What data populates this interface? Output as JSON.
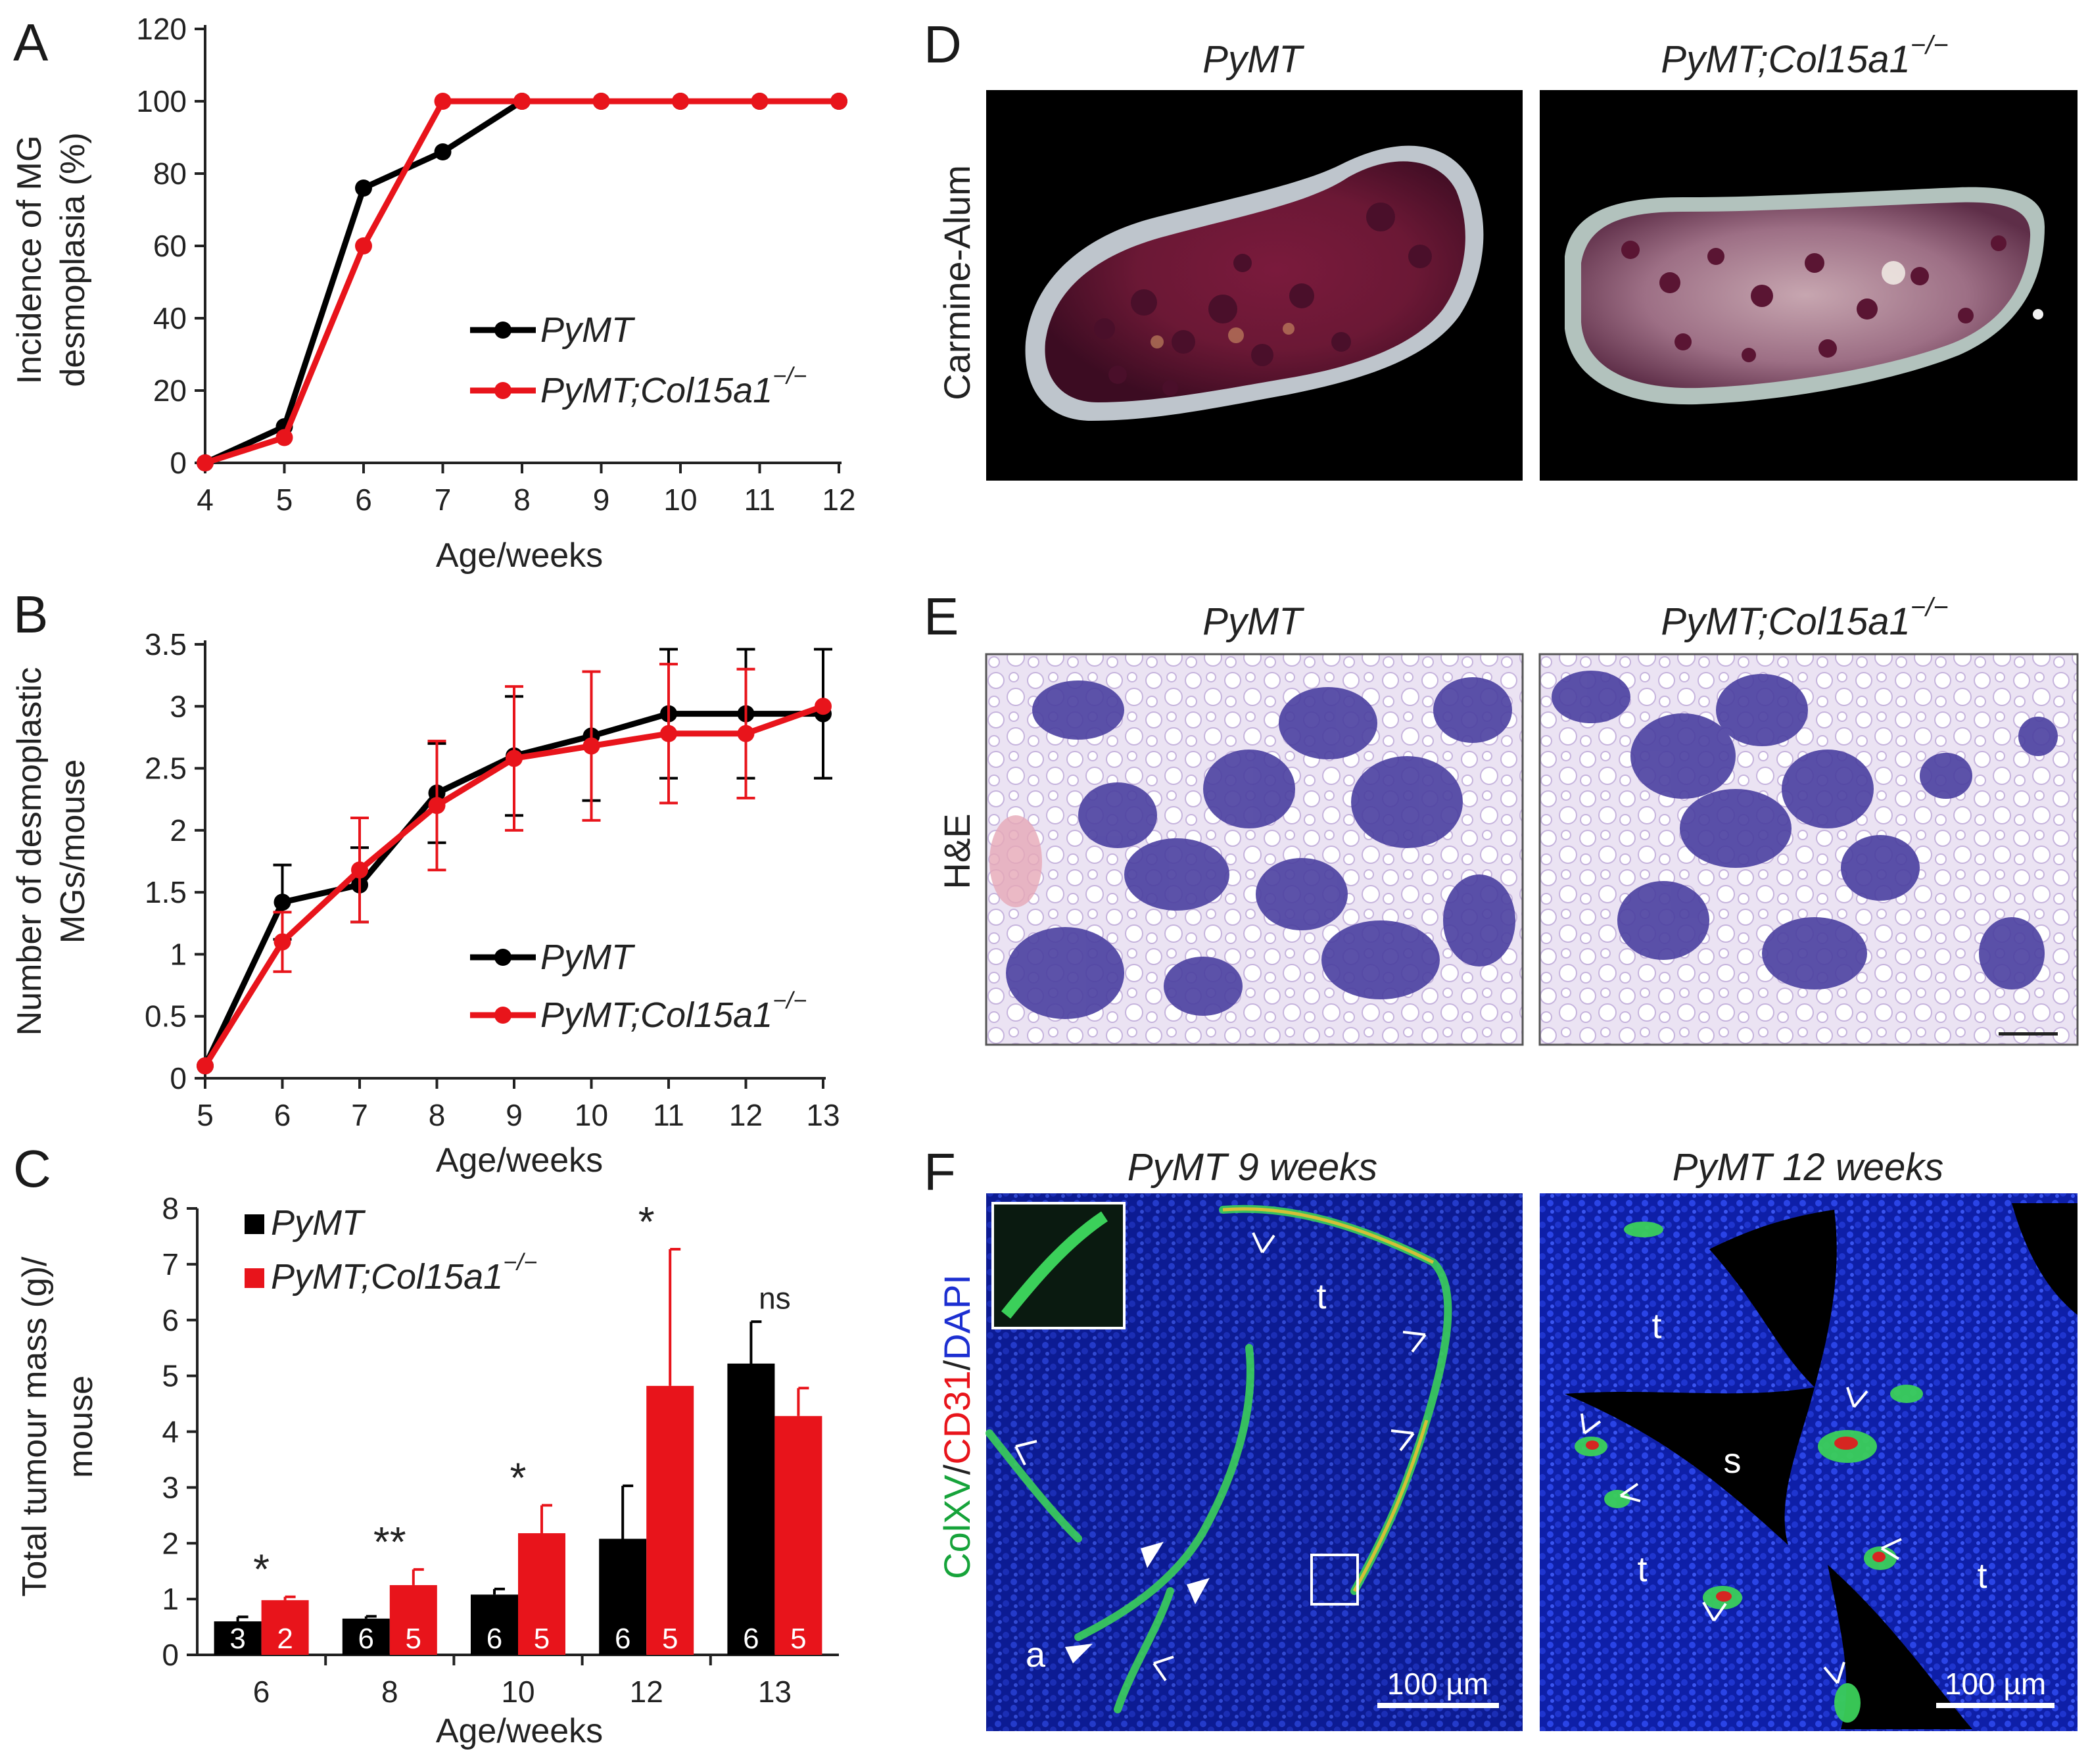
{
  "panels": {
    "A": {
      "letter": "A",
      "chart_data": {
        "type": "line",
        "x": [
          4,
          5,
          6,
          7,
          8,
          9,
          10,
          11,
          12
        ],
        "series": [
          {
            "name": "PyMT",
            "color": "#000000",
            "values": [
              0,
              10,
              76,
              86,
              100,
              100,
              100,
              100,
              100
            ]
          },
          {
            "name": "PyMT;Col15a1",
            "color": "#e8141b",
            "values": [
              0,
              7,
              60,
              100,
              100,
              100,
              100,
              100,
              100
            ]
          }
        ],
        "xlabel": "Age/weeks",
        "ylabel_lines": [
          "Incidence of MG",
          "desmoplasia (%)"
        ],
        "xlim": [
          4,
          12
        ],
        "ylim": [
          0,
          120
        ],
        "yticks": [
          0,
          20,
          40,
          60,
          80,
          100,
          120
        ],
        "legend_position": "center-right"
      }
    },
    "B": {
      "letter": "B",
      "chart_data": {
        "type": "line",
        "x": [
          5,
          6,
          7,
          8,
          9,
          10,
          11,
          12,
          13
        ],
        "series": [
          {
            "name": "PyMT",
            "color": "#000000",
            "values": [
              0.1,
              1.42,
              1.56,
              2.3,
              2.6,
              2.76,
              2.94,
              2.94,
              2.94
            ],
            "errors": [
              0,
              0.3,
              0.3,
              0.4,
              0.48,
              0.52,
              0.52,
              0.52,
              0.52
            ]
          },
          {
            "name": "PyMT;Col15a1",
            "color": "#e8141b",
            "values": [
              0.1,
              1.1,
              1.68,
              2.2,
              2.58,
              2.68,
              2.78,
              2.78,
              3.0
            ],
            "errors": [
              0,
              0.24,
              0.42,
              0.52,
              0.58,
              0.6,
              0.56,
              0.52,
              0
            ]
          }
        ],
        "xlabel": "Age/weeks",
        "ylabel_lines": [
          "Number of desmoplastic",
          "MGs/mouse"
        ],
        "xlim": [
          5,
          13
        ],
        "ylim": [
          0,
          3.5
        ],
        "yticks": [
          0,
          0.5,
          1,
          1.5,
          2,
          2.5,
          3,
          3.5
        ],
        "legend_position": "center-right"
      }
    },
    "C": {
      "letter": "C",
      "chart_data": {
        "type": "bar",
        "categories": [
          "6",
          "8",
          "10",
          "12",
          "13"
        ],
        "series": [
          {
            "name": "PyMT",
            "color": "#000000",
            "values": [
              0.6,
              0.65,
              1.08,
              2.08,
              5.22
            ],
            "errors": [
              0.08,
              0.04,
              0.1,
              0.95,
              0.75
            ],
            "n": [
              "3",
              "6",
              "6",
              "6",
              "6"
            ]
          },
          {
            "name": "PyMT;Col15a1",
            "color": "#e8141b",
            "values": [
              0.98,
              1.25,
              2.18,
              4.82,
              4.28
            ],
            "errors": [
              0.06,
              0.28,
              0.5,
              2.45,
              0.5
            ],
            "n": [
              "2",
              "5",
              "5",
              "5",
              "5"
            ]
          }
        ],
        "significance": [
          "*",
          "**",
          "*",
          "*",
          "ns"
        ],
        "xlabel": "Age/weeks",
        "ylabel_lines": [
          "Total tumour mass (g)/",
          "mouse"
        ],
        "ylim": [
          0,
          8
        ],
        "yticks": [
          0,
          1,
          2,
          3,
          4,
          5,
          6,
          7,
          8
        ],
        "legend_position": "top-left"
      }
    },
    "D": {
      "letter": "D",
      "row_label": "Carmine-Alum",
      "titles": [
        "PyMT",
        "PyMT;Col15a1"
      ]
    },
    "E": {
      "letter": "E",
      "row_label": "H&E",
      "titles": [
        "PyMT",
        "PyMT;Col15a1"
      ]
    },
    "F": {
      "letter": "F",
      "row_label_parts": [
        {
          "text": "ColXV",
          "color": "#16a33a"
        },
        {
          "text": "/",
          "color": "#222222"
        },
        {
          "text": "CD31",
          "color": "#e8141b"
        },
        {
          "text": "/",
          "color": "#222222"
        },
        {
          "text": "DAPI",
          "color": "#1c2fd1"
        }
      ],
      "titles": [
        "PyMT 9 weeks",
        "PyMT 12 weeks"
      ],
      "left_labels": [
        "t",
        "a"
      ],
      "right_labels": [
        "t",
        "s",
        "t",
        "t"
      ],
      "scale_bar": "100 µm"
    },
    "genotype_superscript": "−/−"
  }
}
